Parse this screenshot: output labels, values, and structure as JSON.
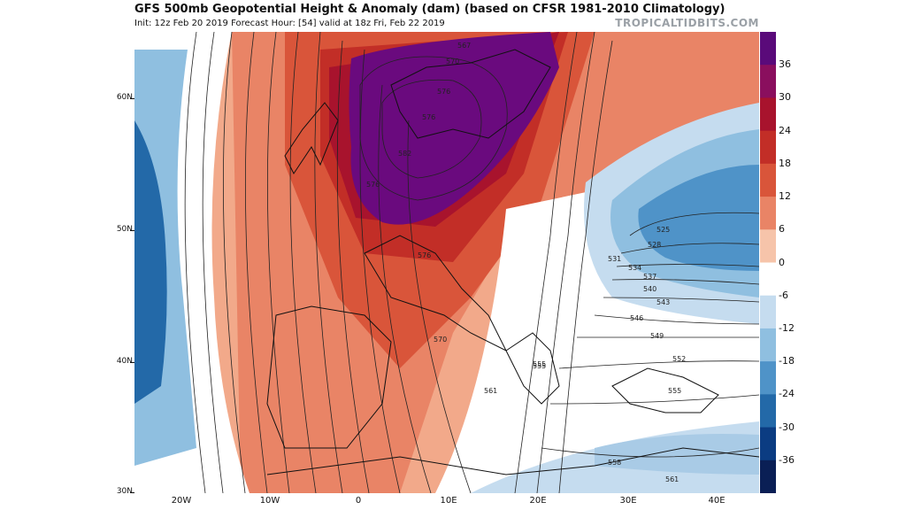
{
  "header": {
    "title": "GFS 500mb Geopotential Height & Anomaly (dam) (based on CFSR 1981-2010 Climatology)",
    "subtitle": "Init: 12z Feb 20 2019   Forecast Hour: [54]   valid at 18z Fri, Feb 22 2019",
    "brand": "TROPICALTIDBITS.COM"
  },
  "colorbar": {
    "labels": [
      "36",
      "30",
      "24",
      "18",
      "12",
      "6",
      "0",
      "-6",
      "-12",
      "-18",
      "-24",
      "-30",
      "-36"
    ],
    "colors": [
      "#5a0a7a",
      "#8a0f5e",
      "#a8132d",
      "#c22e27",
      "#d9553a",
      "#e98466",
      "#f6c4aa",
      "#ffffff",
      "#c5dcef",
      "#8fbfe0",
      "#4f93c8",
      "#2369a8",
      "#0b3c82",
      "#0a1f55"
    ]
  },
  "axes": {
    "lat_labels": [
      "60N",
      "50N",
      "40N",
      "30N"
    ],
    "lon_labels": [
      "20W",
      "10W",
      "0",
      "10E",
      "20E",
      "30E",
      "40E"
    ]
  },
  "contour_labels": [
    "567",
    "570",
    "576",
    "576",
    "582",
    "576",
    "570",
    "576",
    "561",
    "555",
    "525",
    "528",
    "531",
    "534",
    "537",
    "540",
    "543",
    "546",
    "549",
    "552",
    "555",
    "555",
    "558",
    "561"
  ]
}
